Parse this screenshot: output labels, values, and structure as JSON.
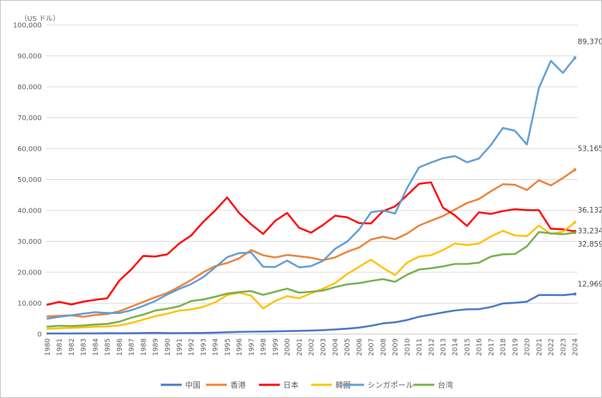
{
  "chart_data": {
    "type": "line",
    "unit_label": "（US ドル）",
    "ylim": [
      0,
      100000
    ],
    "yticks": [
      0,
      10000,
      20000,
      30000,
      40000,
      50000,
      60000,
      70000,
      80000,
      90000,
      100000
    ],
    "ytick_labels": [
      "0",
      "10,000",
      "20,000",
      "30,000",
      "40,000",
      "50,000",
      "60,000",
      "70,000",
      "80,000",
      "90,000",
      "100,000"
    ],
    "grid": true,
    "legend_position": "bottom",
    "x": [
      "1980",
      "1981",
      "1982",
      "1983",
      "1984",
      "1985",
      "1986",
      "1987",
      "1988",
      "1989",
      "1990",
      "1991",
      "1992",
      "1993",
      "1994",
      "1995",
      "1996",
      "1997",
      "1998",
      "1999",
      "2000",
      "2001",
      "2002",
      "2003",
      "2004",
      "2005",
      "2006",
      "2007",
      "2008",
      "2009",
      "2010",
      "2011",
      "2012",
      "2013",
      "2014",
      "2015",
      "2016",
      "2017",
      "2018",
      "2019",
      "2020",
      "2021",
      "2022",
      "2023",
      "2024"
    ],
    "series": [
      {
        "name": "中国",
        "color": "#4472C4",
        "end_label": "12,969",
        "values": [
          200,
          200,
          200,
          250,
          250,
          300,
          280,
          300,
          370,
          400,
          320,
          330,
          370,
          380,
          470,
          610,
          710,
          780,
          830,
          870,
          960,
          1050,
          1150,
          1290,
          1510,
          1750,
          2100,
          2690,
          3470,
          3830,
          4550,
          5610,
          6300,
          7020,
          7640,
          8030,
          8060,
          8760,
          9910,
          10140,
          10500,
          12620,
          12660,
          12600,
          12969
        ]
      },
      {
        "name": "香港",
        "color": "#ED7D31",
        "end_label": "53,165",
        "values": [
          5700,
          5900,
          6100,
          5600,
          6200,
          6500,
          7400,
          8900,
          10400,
          11900,
          13300,
          15300,
          17500,
          20000,
          22000,
          23000,
          24500,
          27200,
          25500,
          24800,
          25600,
          25200,
          24700,
          23900,
          24800,
          26600,
          28000,
          30600,
          31500,
          30700,
          32500,
          35100,
          36700,
          38200,
          40300,
          42400,
          43700,
          46200,
          48500,
          48300,
          46600,
          49800,
          48100,
          50500,
          53165
        ]
      },
      {
        "name": "日本",
        "color": "#FF0000",
        "end_label": "33,234",
        "values": [
          9500,
          10400,
          9600,
          10500,
          11100,
          11600,
          17300,
          20900,
          25300,
          25100,
          25800,
          29300,
          31900,
          36300,
          40000,
          44200,
          39200,
          35500,
          32400,
          36600,
          39200,
          34400,
          32800,
          35300,
          38300,
          37800,
          35900,
          35800,
          39800,
          41300,
          44900,
          48600,
          49100,
          40900,
          38400,
          35000,
          39400,
          38900,
          39800,
          40400,
          40100,
          40100,
          34100,
          33900,
          33234
        ]
      },
      {
        "name": "韓国",
        "color": "#FFC000",
        "end_label": "36,132",
        "values": [
          1700,
          1900,
          2000,
          2200,
          2400,
          2500,
          2800,
          3600,
          4700,
          5800,
          6600,
          7600,
          8000,
          8800,
          10300,
          12600,
          13400,
          12400,
          8300,
          10700,
          12300,
          11600,
          13200,
          14700,
          16500,
          19400,
          21800,
          24100,
          21400,
          19100,
          23100,
          25100,
          25500,
          27200,
          29300,
          28800,
          29300,
          31600,
          33400,
          31900,
          31700,
          35100,
          32400,
          33100,
          36132
        ]
      },
      {
        "name": "シンガポール",
        "color": "#5B9BD5",
        "end_label": "89,370",
        "values": [
          5000,
          5600,
          6100,
          6600,
          7100,
          6800,
          6800,
          7700,
          9100,
          10700,
          12800,
          14600,
          16200,
          18400,
          21600,
          24900,
          26200,
          26400,
          21800,
          21700,
          23800,
          21600,
          22000,
          23700,
          27600,
          29900,
          33800,
          39400,
          40000,
          39000,
          47200,
          53900,
          55500,
          56900,
          57600,
          55600,
          56800,
          61200,
          66700,
          65800,
          61300,
          79600,
          88400,
          84500,
          89370
        ]
      },
      {
        "name": "台湾",
        "color": "#70AD47",
        "end_label": "32,859",
        "values": [
          2400,
          2700,
          2600,
          2800,
          3100,
          3300,
          4000,
          5300,
          6300,
          7600,
          8200,
          9000,
          10700,
          11200,
          12100,
          13100,
          13600,
          13900,
          12700,
          13700,
          14700,
          13400,
          13700,
          14100,
          15200,
          16100,
          16500,
          17200,
          17800,
          16900,
          19200,
          20900,
          21300,
          21900,
          22700,
          22700,
          23100,
          25100,
          25800,
          25900,
          28400,
          33000,
          32600,
          32300,
          32859
        ]
      }
    ]
  }
}
